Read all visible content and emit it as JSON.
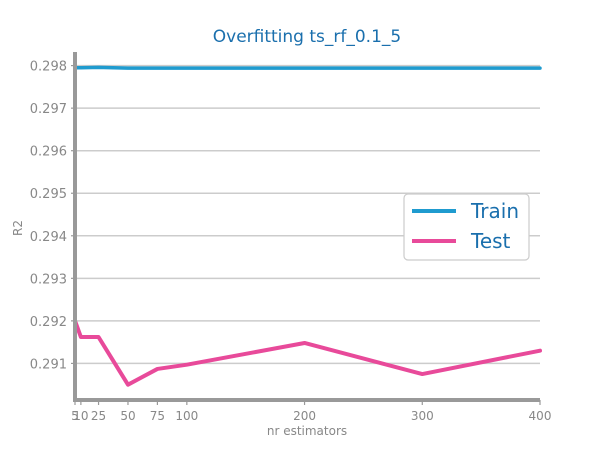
{
  "chart_data": {
    "type": "line",
    "title": "Overfitting ts_rf_0.1_5",
    "xlabel": "nr estimators",
    "ylabel": "R2",
    "x": [
      5,
      10,
      25,
      50,
      75,
      100,
      200,
      300,
      400
    ],
    "x_tick_labels": [
      "5",
      "10",
      "25",
      "50",
      "75",
      "100",
      "200",
      "300",
      "400"
    ],
    "y_ticks": [
      0.291,
      0.292,
      0.293,
      0.294,
      0.295,
      0.296,
      0.297,
      0.298
    ],
    "y_tick_labels": [
      "0.291",
      "0.292",
      "0.293",
      "0.294",
      "0.295",
      "0.296",
      "0.297",
      "0.298"
    ],
    "xlim": [
      5,
      400
    ],
    "ylim": [
      0.29014,
      0.29832
    ],
    "grid": "horizontal",
    "legend_position": "center-right",
    "series": [
      {
        "name": "Train",
        "color": "#1f9bcf",
        "values": [
          0.29795,
          0.29795,
          0.29796,
          0.29794,
          0.29794,
          0.29794,
          0.29794,
          0.29794,
          0.29794
        ]
      },
      {
        "name": "Test",
        "color": "#e84a9a",
        "values": [
          0.292,
          0.29162,
          0.29162,
          0.2905,
          0.29087,
          0.29097,
          0.29148,
          0.29075,
          0.2913
        ]
      }
    ]
  },
  "colors": {
    "title": "#1a6fad",
    "axis": "#999999",
    "grid": "#cccccc",
    "tick_text": "#888888",
    "legend_text": "#1a6fad"
  }
}
